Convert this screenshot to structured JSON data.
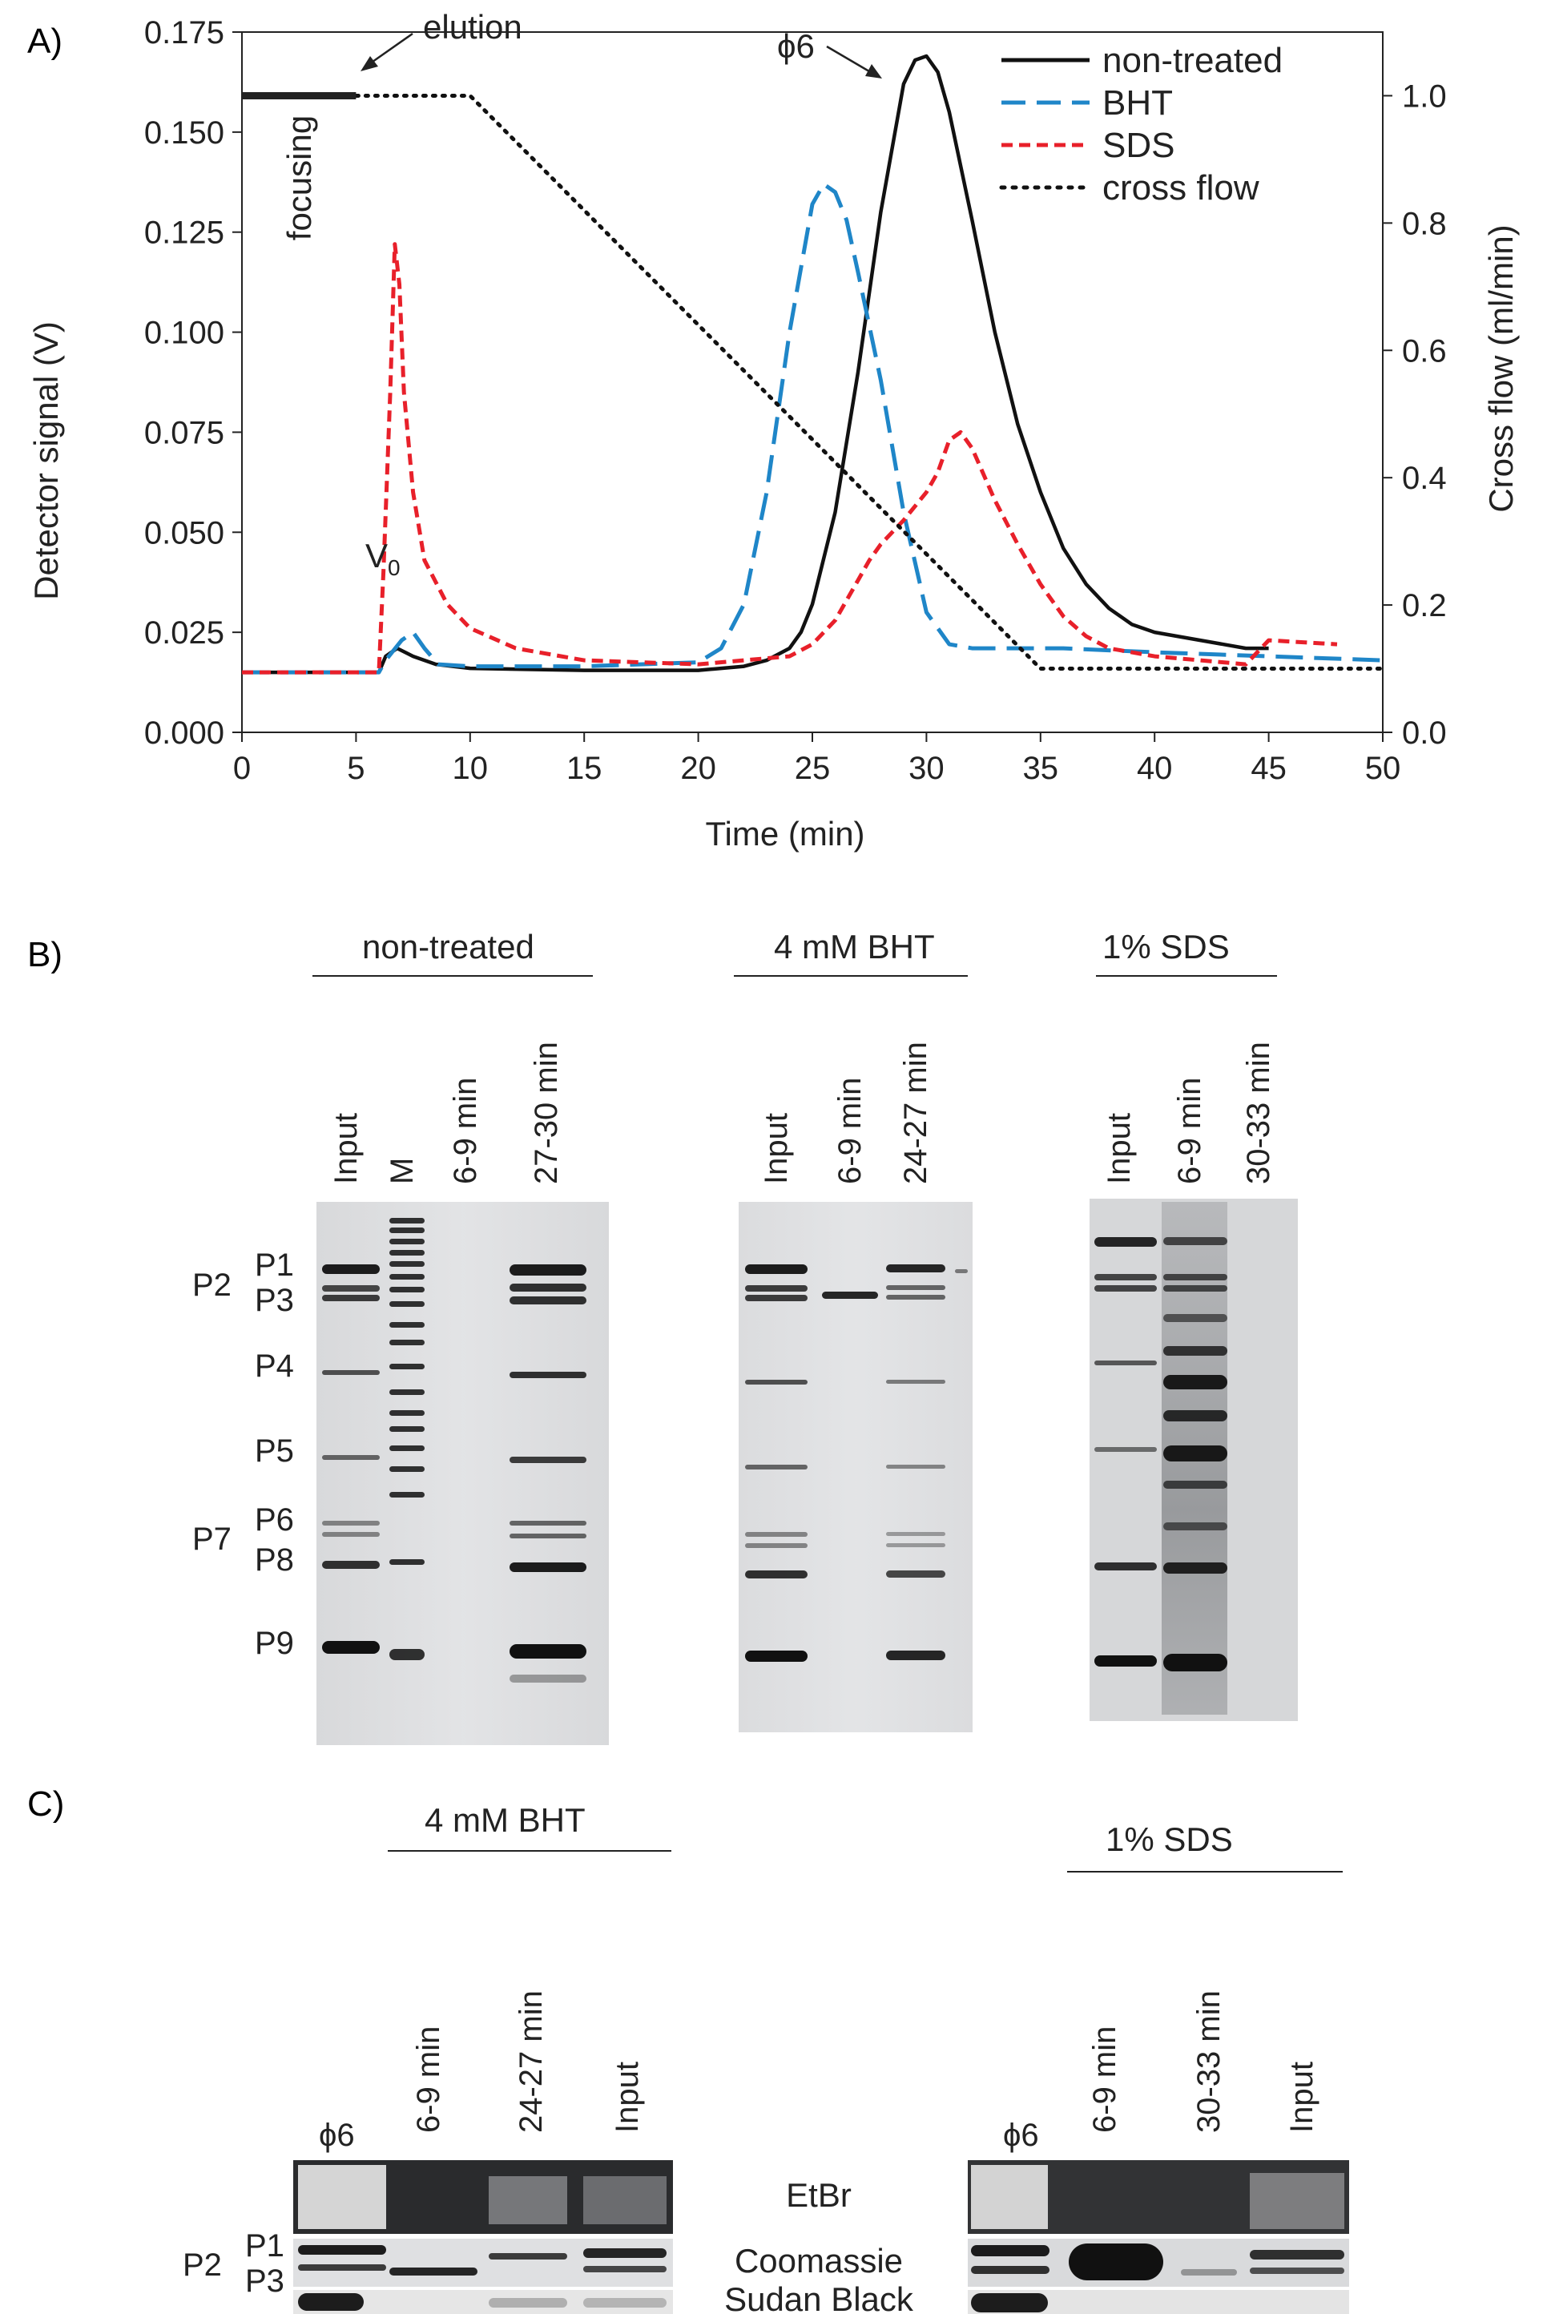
{
  "panel_a": {
    "letter": "A)",
    "chart_data": {
      "type": "line",
      "xlabel": "Time (min)",
      "ylabel_left": "Detector signal (V)",
      "ylabel_right": "Cross flow (ml/min)",
      "xlim": [
        0,
        50
      ],
      "ylim_left": [
        0,
        0.175
      ],
      "ylim_right": [
        0,
        1.1
      ],
      "x_ticks": [
        "0",
        "5",
        "10",
        "15",
        "20",
        "25",
        "30",
        "35",
        "40",
        "45",
        "50"
      ],
      "y_left_ticks": [
        "0.000",
        "0.025",
        "0.050",
        "0.075",
        "0.100",
        "0.125",
        "0.150",
        "0.175"
      ],
      "y_right_ticks": [
        "0.0",
        "0.2",
        "0.4",
        "0.6",
        "0.8",
        "1.0"
      ],
      "legend_position": "top-right",
      "annotations": {
        "focusing": "focusing",
        "elution": "elution",
        "phi6": "ϕ6",
        "v0": "V",
        "v0_sub": "0"
      },
      "series": [
        {
          "name": "non-treated",
          "axis": "left",
          "style": "solid",
          "color": "#111111",
          "x": [
            0,
            5,
            6,
            6.3,
            6.8,
            7.5,
            8.5,
            10,
            15,
            20,
            21,
            22,
            23,
            24,
            24.5,
            25,
            26,
            27,
            28,
            29,
            29.5,
            30,
            30.5,
            31,
            32,
            33,
            34,
            35,
            36,
            37,
            38,
            39,
            40,
            42,
            44,
            45
          ],
          "y": [
            0.015,
            0.015,
            0.015,
            0.019,
            0.021,
            0.019,
            0.017,
            0.016,
            0.0155,
            0.0155,
            0.016,
            0.0165,
            0.018,
            0.021,
            0.025,
            0.032,
            0.055,
            0.09,
            0.13,
            0.162,
            0.168,
            0.169,
            0.165,
            0.155,
            0.128,
            0.1,
            0.077,
            0.06,
            0.046,
            0.037,
            0.031,
            0.027,
            0.025,
            0.023,
            0.021,
            0.021
          ]
        },
        {
          "name": "BHT",
          "axis": "left",
          "style": "dashed",
          "color": "#1f86c8",
          "x": [
            0,
            5,
            6,
            6.3,
            7,
            7.5,
            8,
            8.6,
            10,
            15,
            20,
            21,
            22,
            23,
            24,
            25,
            25.5,
            26,
            26.5,
            27,
            28,
            29,
            30,
            31,
            32,
            34,
            36,
            40,
            45,
            50
          ],
          "y": [
            0.015,
            0.015,
            0.015,
            0.018,
            0.023,
            0.025,
            0.021,
            0.017,
            0.0165,
            0.0165,
            0.0175,
            0.021,
            0.032,
            0.06,
            0.1,
            0.132,
            0.137,
            0.135,
            0.128,
            0.115,
            0.088,
            0.055,
            0.03,
            0.022,
            0.021,
            0.021,
            0.021,
            0.02,
            0.019,
            0.018
          ]
        },
        {
          "name": "SDS",
          "axis": "left",
          "style": "dashed",
          "color": "#e8202a",
          "x": [
            0,
            5,
            6,
            6.2,
            6.5,
            6.7,
            6.9,
            7.1,
            7.5,
            8,
            9,
            10,
            12,
            15,
            20,
            24,
            25,
            26,
            27,
            27.5,
            28,
            29,
            30,
            30.5,
            31,
            31.5,
            32,
            33,
            34,
            35,
            36,
            37,
            38,
            40,
            42,
            44,
            45,
            48
          ],
          "y": [
            0.015,
            0.015,
            0.015,
            0.04,
            0.085,
            0.122,
            0.112,
            0.085,
            0.06,
            0.043,
            0.032,
            0.026,
            0.021,
            0.018,
            0.017,
            0.019,
            0.022,
            0.028,
            0.038,
            0.043,
            0.047,
            0.053,
            0.06,
            0.065,
            0.073,
            0.075,
            0.071,
            0.058,
            0.047,
            0.037,
            0.029,
            0.024,
            0.021,
            0.019,
            0.018,
            0.017,
            0.023,
            0.022
          ]
        },
        {
          "name": "cross flow",
          "axis": "right",
          "style": "dotted",
          "color": "#111111",
          "x": [
            5,
            10,
            35,
            50
          ],
          "y": [
            1.0,
            1.0,
            0.1,
            0.1
          ]
        },
        {
          "name": "focusing",
          "axis": "right",
          "style": "solid-thick",
          "color": "#222222",
          "legend": false,
          "x": [
            0,
            5
          ],
          "y": [
            1.0,
            1.0
          ]
        }
      ]
    }
  },
  "panel_b": {
    "letter": "B)",
    "groups": [
      {
        "label": "non-treated",
        "lanes": [
          "Input",
          "M",
          "6-9 min",
          "27-30 min"
        ]
      },
      {
        "label": "4 mM BHT",
        "lanes": [
          "Input",
          "6-9 min",
          "24-27 min"
        ]
      },
      {
        "label": "1% SDS",
        "lanes": [
          "Input",
          "6-9 min",
          "30-33 min"
        ]
      }
    ],
    "band_labels": {
      "p1": "P1",
      "p2": "P2",
      "p3": "P3",
      "p4": "P4",
      "p5": "P5",
      "p6": "P6",
      "p7": "P7",
      "p8": "P8",
      "p9": "P9"
    }
  },
  "panel_c": {
    "letter": "C)",
    "groups": [
      {
        "label": "4 mM BHT",
        "phi": "ϕ6",
        "lanes": [
          "6-9 min",
          "24-27 min",
          "Input"
        ]
      },
      {
        "label": "1% SDS",
        "phi": "ϕ6",
        "lanes": [
          "6-9 min",
          "30-33 min",
          "Input"
        ]
      }
    ],
    "stains": {
      "etbr": "EtBr",
      "coomassie": "Coomassie",
      "sudan": "Sudan Black"
    },
    "band_labels": {
      "p1": "P1",
      "p2": "P2",
      "p3": "P3"
    }
  }
}
